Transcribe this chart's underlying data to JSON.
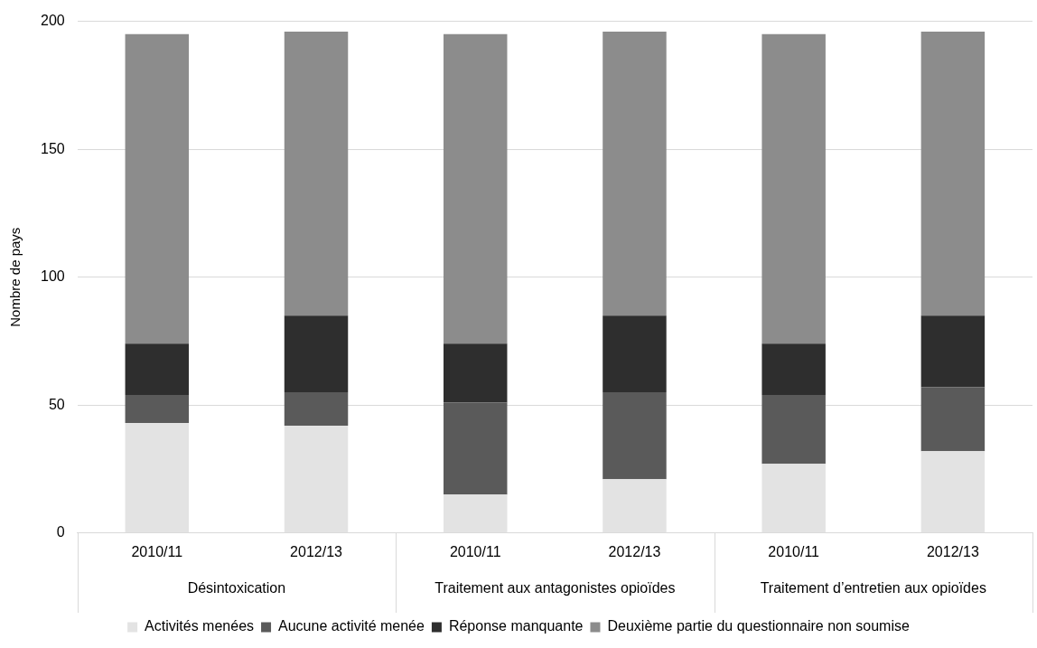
{
  "chart_data": {
    "type": "bar",
    "stacked": true,
    "ylabel": "Nombre de pays",
    "categories": [
      "2010/11",
      "2012/13",
      "2010/11",
      "2012/13",
      "2010/11",
      "2012/13"
    ],
    "series": [
      {
        "name": "Activités menées",
        "color": "#e3e3e3",
        "values": [
          43,
          42,
          15,
          21,
          27,
          32
        ]
      },
      {
        "name": "Aucune activité menée",
        "color": "#5a5a5a",
        "values": [
          11,
          13,
          36,
          34,
          27,
          25
        ]
      },
      {
        "name": "Réponse manquante",
        "color": "#2e2e2e",
        "values": [
          20,
          30,
          23,
          30,
          20,
          28
        ]
      },
      {
        "name": "Deuxième partie du questionnaire non soumise",
        "color": "#8c8c8c",
        "values": [
          121,
          111,
          121,
          111,
          121,
          111
        ]
      }
    ],
    "ylim": [
      0,
      200
    ],
    "yticks": [
      0,
      50,
      100,
      150,
      200
    ],
    "grid": "y",
    "legend": "bottom",
    "annotations": [
      "Désintoxication",
      "Traitement aux antagonistes opioïdes",
      "Traitement d’entretien aux opioïdes"
    ]
  }
}
